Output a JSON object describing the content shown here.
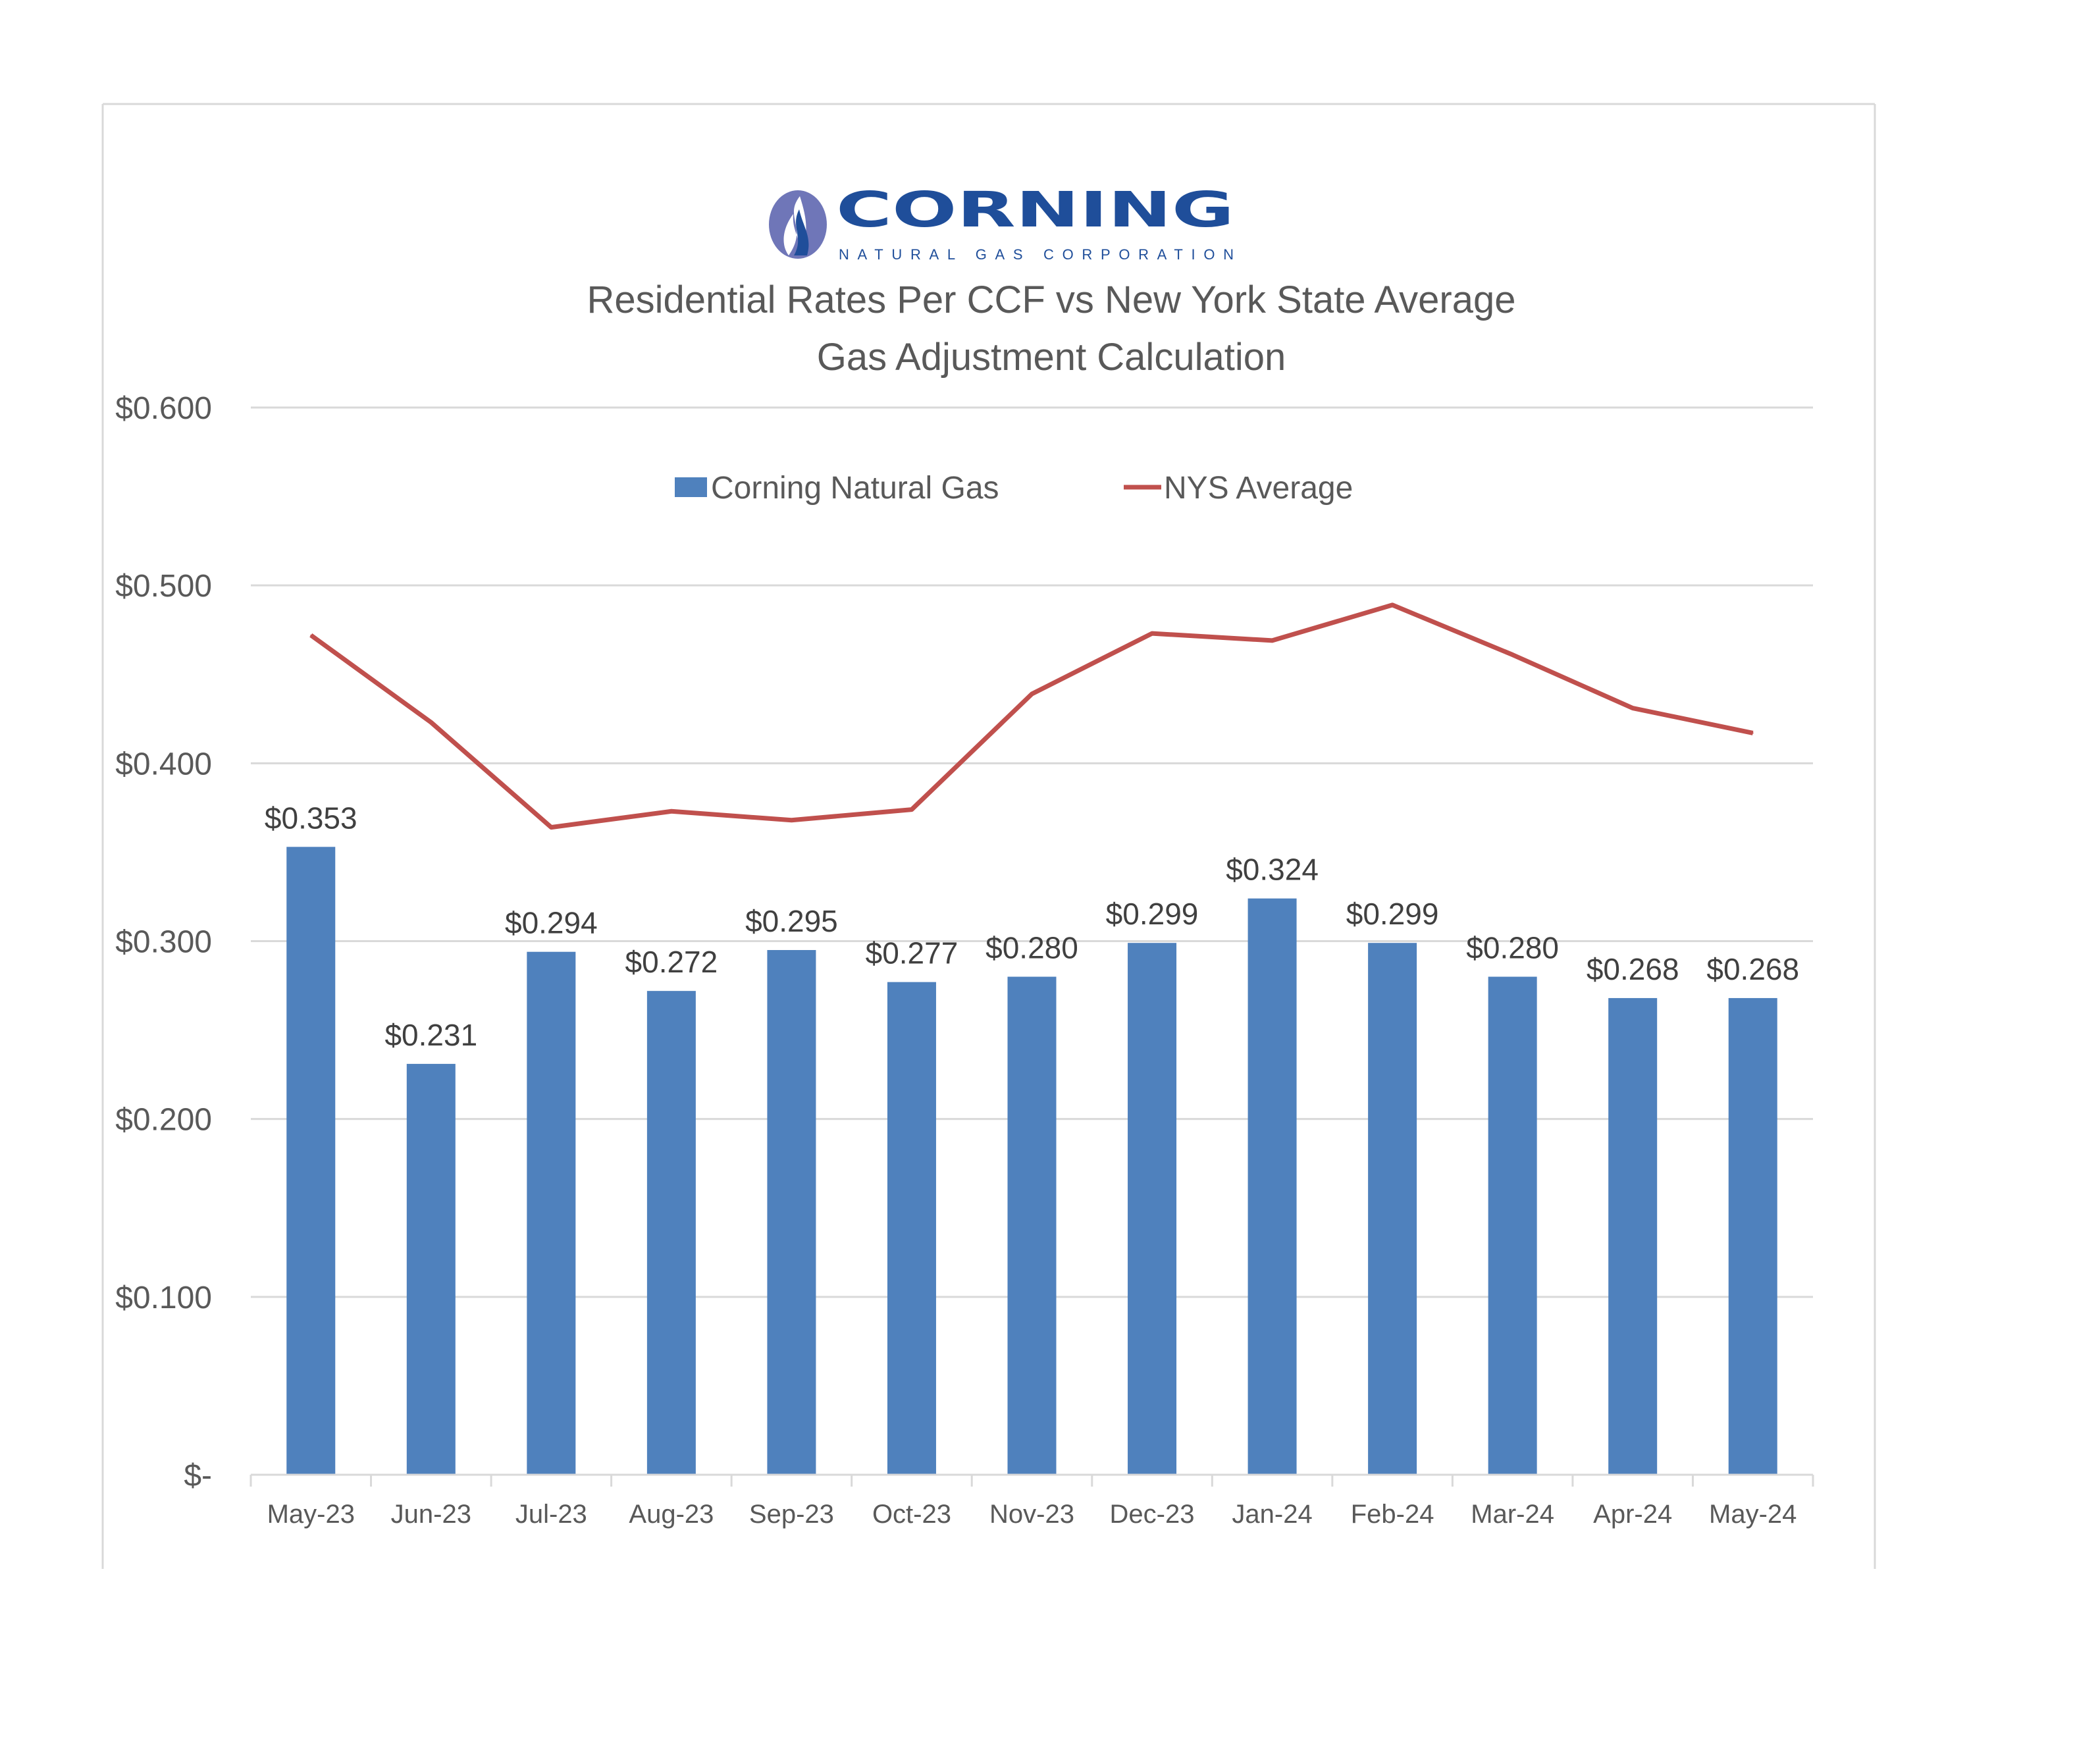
{
  "logo": {
    "name": "CORNING",
    "tagline": "NATURAL GAS CORPORATION",
    "color": "#1f4e9a",
    "flame_outer": "#6f76b8"
  },
  "chart_data": {
    "type": "bar+line",
    "title": [
      "Residential Rates Per CCF vs New York State Average",
      "Gas Adjustment Calculation"
    ],
    "categories": [
      "May-23",
      "Jun-23",
      "Jul-23",
      "Aug-23",
      "Sep-23",
      "Oct-23",
      "Nov-23",
      "Dec-23",
      "Jan-24",
      "Feb-24",
      "Mar-24",
      "Apr-24",
      "May-24"
    ],
    "series": [
      {
        "name": "Corning Natural Gas",
        "type": "bar",
        "color": "#4f81bd",
        "values": [
          0.353,
          0.231,
          0.294,
          0.272,
          0.295,
          0.277,
          0.28,
          0.299,
          0.324,
          0.299,
          0.28,
          0.268,
          0.268
        ],
        "labels": [
          "$0.353",
          "$0.231",
          "$0.294",
          "$0.272",
          "$0.295",
          "$0.277",
          "$0.280",
          "$0.299",
          "$0.324",
          "$0.299",
          "$0.280",
          "$0.268",
          "$0.268"
        ]
      },
      {
        "name": "NYS Average",
        "type": "line",
        "color": "#c0504d",
        "values": [
          0.472,
          0.423,
          0.364,
          0.373,
          0.368,
          0.374,
          0.439,
          0.473,
          0.469,
          0.489,
          0.461,
          0.431,
          0.417
        ]
      }
    ],
    "ylim": [
      0,
      0.6
    ],
    "yticks": [
      0,
      0.1,
      0.2,
      0.3,
      0.4,
      0.5,
      0.6
    ],
    "ytick_labels": [
      "$-",
      "$0.100",
      "$0.200",
      "$0.300",
      "$0.400",
      "$0.500",
      "$0.600"
    ],
    "grid": true,
    "legend_position": "top-center",
    "gridline_color": "#d9d9d9"
  }
}
